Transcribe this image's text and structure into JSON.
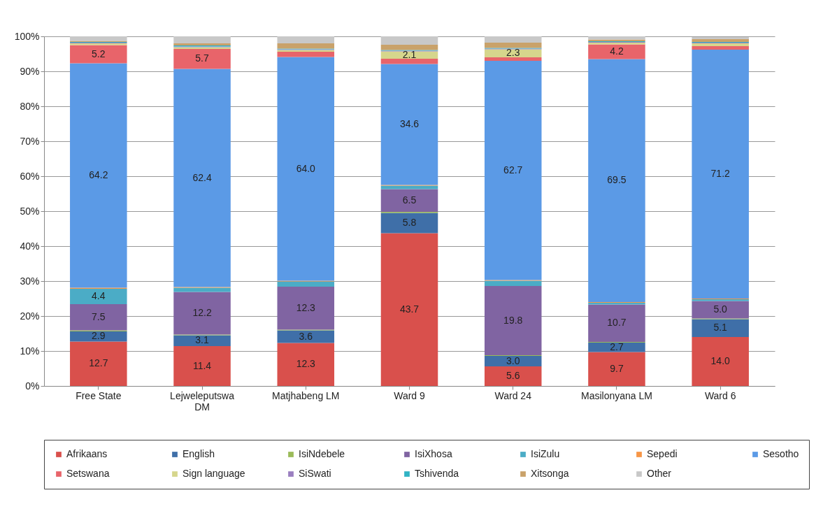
{
  "chart_data": {
    "type": "bar",
    "stacked": true,
    "categories": [
      "Free State",
      "Lejweleputswa DM",
      "Matjhabeng LM",
      "Ward 9",
      "Ward 24",
      "Masilonyana LM",
      "Ward 6"
    ],
    "ylim": [
      0,
      100
    ],
    "yticks": [
      {
        "value": 0,
        "label": "0%"
      },
      {
        "value": 10,
        "label": "10%"
      },
      {
        "value": 20,
        "label": "20%"
      },
      {
        "value": 30,
        "label": "30%"
      },
      {
        "value": 40,
        "label": "40%"
      },
      {
        "value": 50,
        "label": "50%"
      },
      {
        "value": 60,
        "label": "60%"
      },
      {
        "value": 70,
        "label": "70%"
      },
      {
        "value": 80,
        "label": "80%"
      },
      {
        "value": 90,
        "label": "90%"
      },
      {
        "value": 100,
        "label": "100%"
      }
    ],
    "grid": "y",
    "legend": "bottom",
    "series": [
      {
        "name": "Afrikaans",
        "color": "#d9504c",
        "values": [
          12.7,
          11.4,
          12.3,
          43.7,
          5.6,
          9.7,
          14.0
        ],
        "value_labels": [
          "12.7",
          "11.4",
          "12.3",
          "43.7",
          "5.6",
          "9.7",
          "14.0"
        ]
      },
      {
        "name": "English",
        "color": "#3f6fa8",
        "values": [
          2.9,
          3.1,
          3.6,
          5.8,
          3.0,
          2.7,
          5.1
        ],
        "value_labels": [
          "2.9",
          "3.1",
          "3.6",
          "5.8",
          "3.0",
          "2.7",
          "5.1"
        ]
      },
      {
        "name": "IsiNdebele",
        "color": "#9bbb59",
        "values": [
          0.3,
          0.2,
          0.2,
          0.3,
          0.2,
          0.2,
          0.2
        ],
        "value_labels": [
          null,
          null,
          null,
          null,
          null,
          null,
          null
        ]
      },
      {
        "name": "IsiXhosa",
        "color": "#8064a2",
        "values": [
          7.5,
          12.2,
          12.3,
          6.5,
          19.8,
          10.7,
          5.0
        ],
        "value_labels": [
          "7.5",
          "12.2",
          "12.3",
          "6.5",
          "19.8",
          "10.7",
          "5.0"
        ]
      },
      {
        "name": "IsiZulu",
        "color": "#4bacc6",
        "values": [
          4.4,
          1.2,
          1.5,
          1.0,
          1.5,
          0.5,
          0.5
        ],
        "value_labels": [
          "4.4",
          null,
          null,
          null,
          null,
          null,
          null
        ]
      },
      {
        "name": "Sepedi",
        "color": "#f79646",
        "values": [
          0.3,
          0.2,
          0.2,
          0.2,
          0.2,
          0.2,
          0.2
        ],
        "value_labels": [
          null,
          null,
          null,
          null,
          null,
          null,
          null
        ]
      },
      {
        "name": "Sesotho",
        "color": "#5b9ae6",
        "values": [
          64.2,
          62.4,
          64.0,
          34.6,
          62.7,
          69.5,
          71.2
        ],
        "value_labels": [
          "64.2",
          "62.4",
          "64.0",
          "34.6",
          "62.7",
          "69.5",
          "71.2"
        ]
      },
      {
        "name": "Setswana",
        "color": "#e8646a",
        "values": [
          5.2,
          5.7,
          1.5,
          1.5,
          1.0,
          4.2,
          1.0
        ],
        "value_labels": [
          "5.2",
          "5.7",
          null,
          null,
          null,
          "4.2",
          null
        ]
      },
      {
        "name": "Sign language",
        "color": "#d6d68c",
        "values": [
          0.5,
          0.5,
          0.5,
          2.1,
          2.3,
          0.5,
          0.8
        ],
        "value_labels": [
          null,
          null,
          null,
          "2.1",
          "2.3",
          null,
          null
        ]
      },
      {
        "name": "SiSwati",
        "color": "#9a7fc0",
        "values": [
          0.2,
          0.2,
          0.2,
          0.2,
          0.2,
          0.2,
          0.2
        ],
        "value_labels": [
          null,
          null,
          null,
          null,
          null,
          null,
          null
        ]
      },
      {
        "name": "Tshivenda",
        "color": "#31b3c4",
        "values": [
          0.2,
          0.3,
          0.2,
          0.2,
          0.2,
          0.2,
          0.2
        ],
        "value_labels": [
          null,
          null,
          null,
          null,
          null,
          null,
          null
        ]
      },
      {
        "name": "Xitsonga",
        "color": "#c9a26a",
        "values": [
          0.3,
          0.6,
          1.5,
          1.5,
          1.5,
          0.5,
          0.8
        ],
        "value_labels": [
          null,
          null,
          null,
          null,
          null,
          null,
          null
        ]
      },
      {
        "name": "Other",
        "color": "#c8c8c8",
        "values": [
          1.3,
          2.0,
          2.0,
          2.4,
          1.8,
          0.9,
          0.6
        ],
        "value_labels": [
          null,
          null,
          null,
          null,
          null,
          null,
          null
        ]
      }
    ]
  }
}
